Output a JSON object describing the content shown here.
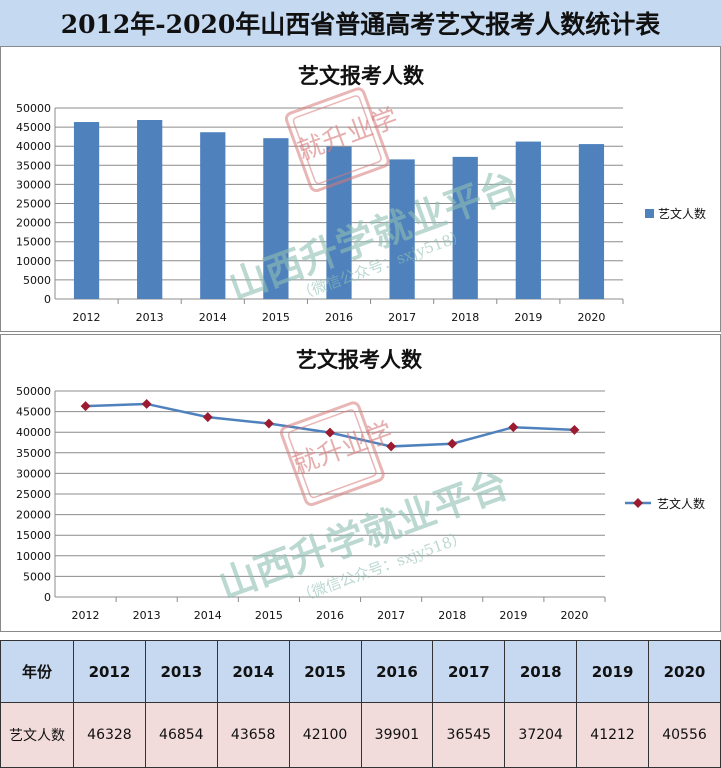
{
  "page_title": "2012年-2020年山西省普通高考艺文报考人数统计表",
  "watermark": {
    "main": "山西升学就业平台",
    "sub": "（微信公众号：sxjy518）",
    "stamp": "就升业学"
  },
  "chart_data": [
    {
      "type": "bar",
      "title": "艺文报考人数",
      "categories": [
        "2012",
        "2013",
        "2014",
        "2015",
        "2016",
        "2017",
        "2018",
        "2019",
        "2020"
      ],
      "series": [
        {
          "name": "艺文人数",
          "values": [
            46328,
            46854,
            43658,
            42100,
            39901,
            36545,
            37204,
            41212,
            40556
          ]
        }
      ],
      "ylim": [
        0,
        50000
      ],
      "yticks": [
        0,
        5000,
        10000,
        15000,
        20000,
        25000,
        30000,
        35000,
        40000,
        45000,
        50000
      ],
      "grid": true,
      "legend": "right",
      "color": "#4f81bd"
    },
    {
      "type": "line",
      "title": "艺文报考人数",
      "categories": [
        "2012",
        "2013",
        "2014",
        "2015",
        "2016",
        "2017",
        "2018",
        "2019",
        "2020"
      ],
      "series": [
        {
          "name": "艺文人数",
          "values": [
            46328,
            46854,
            43658,
            42100,
            39901,
            36545,
            37204,
            41212,
            40556
          ]
        }
      ],
      "ylim": [
        0,
        50000
      ],
      "yticks": [
        0,
        5000,
        10000,
        15000,
        20000,
        25000,
        30000,
        35000,
        40000,
        45000,
        50000
      ],
      "grid": true,
      "legend": "right",
      "line_color": "#4f81bd",
      "marker_color": "#9b1b30"
    }
  ],
  "table": {
    "header_label": "年份",
    "years": [
      "2012",
      "2013",
      "2014",
      "2015",
      "2016",
      "2017",
      "2018",
      "2019",
      "2020"
    ],
    "row_label": "艺文人数",
    "values": [
      "46328",
      "46854",
      "43658",
      "42100",
      "39901",
      "36545",
      "37204",
      "41212",
      "40556"
    ]
  }
}
